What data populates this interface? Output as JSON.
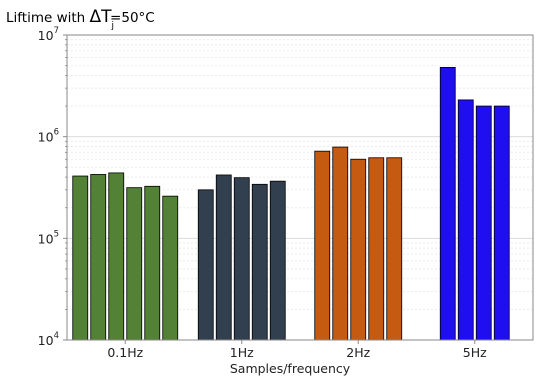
{
  "chart_data": {
    "type": "bar",
    "title": {
      "prefix": "Liftime with ",
      "symbol": "ΔT",
      "subscript": "j",
      "suffix": "=50°C"
    },
    "xlabel": "Samples/frequency",
    "ylabel": "",
    "yscale": "log",
    "ylim": [
      10000,
      10000000
    ],
    "yticks": [
      {
        "base": "10",
        "exp": "4",
        "value": 10000
      },
      {
        "base": "10",
        "exp": "5",
        "value": 100000
      },
      {
        "base": "10",
        "exp": "6",
        "value": 1000000
      },
      {
        "base": "10",
        "exp": "7",
        "value": 10000000
      }
    ],
    "grid": true,
    "groups": [
      {
        "label": "0.1Hz",
        "color": "#538135",
        "values": [
          410000,
          425000,
          440000,
          315000,
          325000,
          260000
        ]
      },
      {
        "label": "1Hz",
        "color": "#323f4f",
        "values": [
          300000,
          420000,
          395000,
          340000,
          365000
        ]
      },
      {
        "label": "2Hz",
        "color": "#c55a11",
        "values": [
          720000,
          790000,
          600000,
          620000,
          620000
        ]
      },
      {
        "label": "5Hz",
        "color": "#1f0ff0",
        "values": [
          4800000,
          2300000,
          2000000,
          2000000
        ]
      }
    ]
  }
}
